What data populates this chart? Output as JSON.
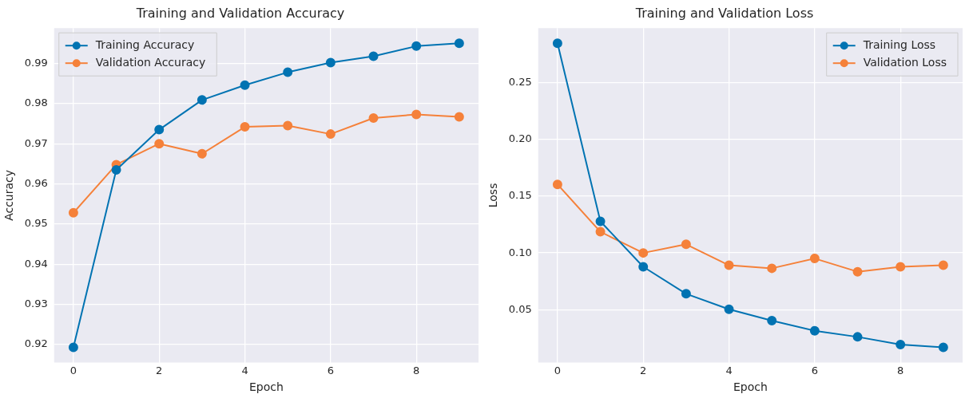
{
  "chart_data": [
    {
      "type": "line",
      "title": "Training and Validation Accuracy",
      "xlabel": "Epoch",
      "ylabel": "Accuracy",
      "x": [
        0,
        1,
        2,
        3,
        4,
        5,
        6,
        7,
        8,
        9
      ],
      "series": [
        {
          "name": "Training Accuracy",
          "color": "#0173b2",
          "values": [
            0.9193,
            0.9635,
            0.9735,
            0.9809,
            0.9846,
            0.9878,
            0.9902,
            0.9918,
            0.9943,
            0.995
          ]
        },
        {
          "name": "Validation Accuracy",
          "color": "#f5813a",
          "values": [
            0.9528,
            0.9648,
            0.97,
            0.9675,
            0.9742,
            0.9745,
            0.9724,
            0.9764,
            0.9773,
            0.9767
          ]
        }
      ],
      "xlim": [
        -0.45,
        9.45
      ],
      "xticks": [
        0,
        2,
        4,
        6,
        8
      ],
      "ylim": [
        0.9155,
        0.9988
      ],
      "yticks": [
        0.92,
        0.93,
        0.94,
        0.95,
        0.96,
        0.97,
        0.98,
        0.99
      ],
      "grid": true,
      "legend": "top left",
      "marker": "circle",
      "line_style": "solid"
    },
    {
      "type": "line",
      "title": "Training and Validation Loss",
      "xlabel": "Epoch",
      "ylabel": "Loss",
      "x": [
        0,
        1,
        2,
        3,
        4,
        5,
        6,
        7,
        8,
        9
      ],
      "series": [
        {
          "name": "Training Loss",
          "color": "#0173b2",
          "values": [
            0.2843,
            0.1278,
            0.0878,
            0.0641,
            0.0505,
            0.0405,
            0.0316,
            0.0262,
            0.0195,
            0.017
          ]
        },
        {
          "name": "Validation Loss",
          "color": "#f5813a",
          "values": [
            0.1603,
            0.1186,
            0.1,
            0.1076,
            0.0892,
            0.0865,
            0.0951,
            0.0835,
            0.0878,
            0.0892
          ]
        }
      ],
      "xlim": [
        -0.45,
        9.45
      ],
      "xticks": [
        0,
        2,
        4,
        6,
        8
      ],
      "ylim": [
        0.0036,
        0.2977
      ],
      "yticks": [
        0.05,
        {
          "value": 0.1,
          "label": "0.10"
        },
        0.15,
        {
          "value": 0.2,
          "label": "0.20"
        },
        0.25
      ],
      "grid": true,
      "legend": "top right",
      "marker": "circle",
      "line_style": "solid"
    }
  ]
}
